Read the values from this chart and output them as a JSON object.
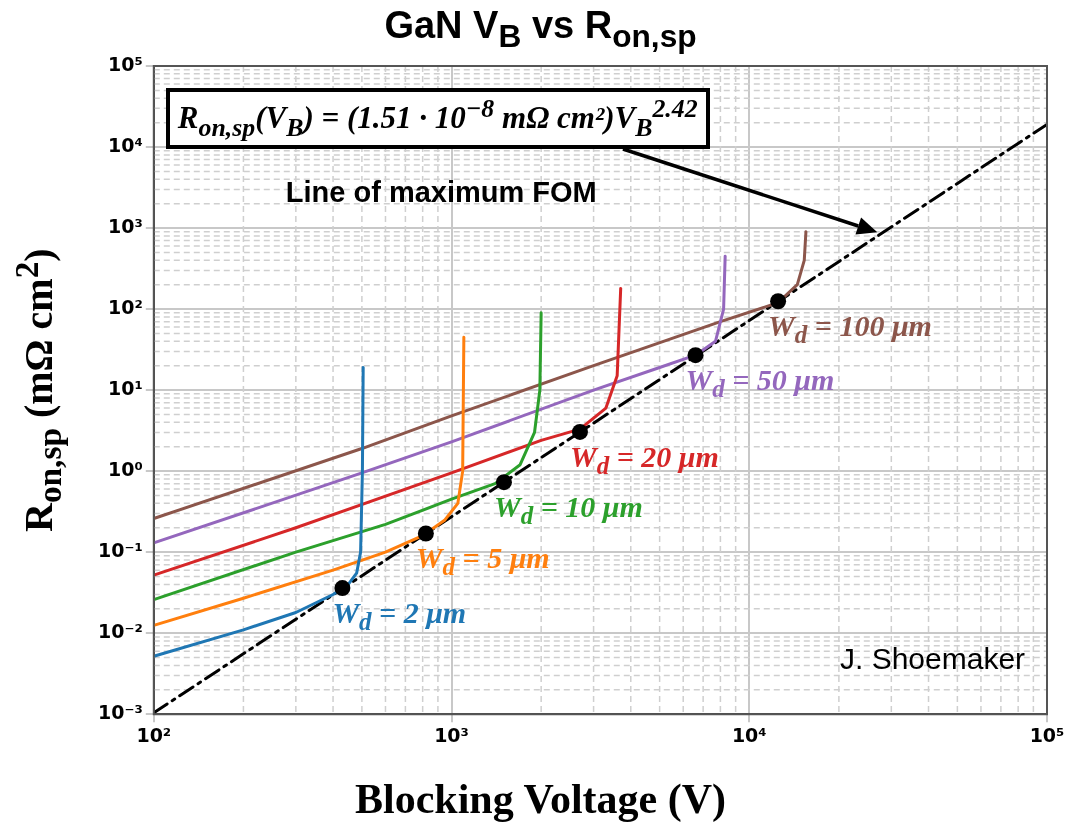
{
  "chart_data": {
    "type": "line",
    "title": "GaN V$_{B}$ vs R$_{on,sp}$",
    "xlabel": "Blocking Voltage (V)",
    "ylabel": "R$_{on,sp}$ (mΩ cm$^{2}$)",
    "log": "xy",
    "grid": true,
    "marker": "none",
    "xlim": [
      100,
      100000
    ],
    "ylim": [
      0.001,
      100000
    ],
    "xticks": [
      {
        "value": 100,
        "label": "10²"
      },
      {
        "value": 1000,
        "label": "10³"
      },
      {
        "value": 10000,
        "label": "10⁴"
      },
      {
        "value": 100000,
        "label": "10⁵"
      }
    ],
    "yticks": [
      {
        "value": 0.001,
        "label": "10⁻³"
      },
      {
        "value": 0.01,
        "label": "10⁻²"
      },
      {
        "value": 0.1,
        "label": "10⁻¹"
      },
      {
        "value": 1,
        "label": "10⁰"
      },
      {
        "value": 10,
        "label": "10¹"
      },
      {
        "value": 100,
        "label": "10²"
      },
      {
        "value": 1000,
        "label": "10³"
      },
      {
        "value": 10000,
        "label": "10⁴"
      },
      {
        "value": 100000,
        "label": "10⁵"
      }
    ],
    "series": [
      {
        "name": "W$_{d}$ = 2 μm",
        "color": "#1f77b4",
        "x": [
          100,
          200,
          300,
          400,
          450,
          480,
          495,
          502,
          505
        ],
        "values": [
          0.0052,
          0.011,
          0.018,
          0.03,
          0.04,
          0.055,
          0.1,
          1,
          19
        ]
      },
      {
        "name": "W$_{d}$ = 5 μm",
        "color": "#ff7f0e",
        "x": [
          100,
          200,
          400,
          600,
          800,
          950,
          1050,
          1090,
          1100
        ],
        "values": [
          0.0125,
          0.027,
          0.06,
          0.1,
          0.16,
          0.25,
          0.4,
          1,
          45
        ]
      },
      {
        "name": "W$_{d}$ = 10 μm",
        "color": "#2ca02c",
        "x": [
          100,
          300,
          600,
          1000,
          1400,
          1700,
          1900,
          1980,
          2000
        ],
        "values": [
          0.026,
          0.1,
          0.22,
          0.45,
          0.7,
          1.2,
          3,
          10,
          90
        ]
      },
      {
        "name": "W$_{d}$ = 20 μm",
        "color": "#d62728",
        "x": [
          100,
          300,
          1000,
          2000,
          2700,
          3300,
          3600,
          3700
        ],
        "values": [
          0.052,
          0.2,
          0.95,
          2.4,
          3.3,
          6,
          15,
          180
        ]
      },
      {
        "name": "W$_{d}$ = 50 μm",
        "color": "#9467bd",
        "x": [
          100,
          500,
          1000,
          3000,
          5000,
          6600,
          7700,
          8200,
          8300
        ],
        "values": [
          0.13,
          0.95,
          2.3,
          10,
          19,
          27,
          40,
          100,
          450
        ]
      },
      {
        "name": "W$_{d}$ = 100 μm",
        "color": "#8c564b",
        "x": [
          100,
          500,
          1000,
          3000,
          8000,
          12500,
          14500,
          15300,
          15500
        ],
        "values": [
          0.26,
          1.9,
          4.8,
          20,
          70,
          120,
          200,
          400,
          900
        ]
      },
      {
        "color": "#000000",
        "line_style": "dashed",
        "x": [
          100,
          100000
        ],
        "values": [
          0.00104,
          19000
        ]
      },
      {
        "type": "scatter",
        "marker": "circle",
        "color": "#000000",
        "x": [
          430,
          820,
          1500,
          2700,
          6600,
          12500
        ],
        "values": [
          0.036,
          0.17,
          0.73,
          3.05,
          27,
          125
        ]
      }
    ],
    "annotations": [
      "R$_{on,sp}$(V$_{B}$) = (1.51 · 10$^{−8}$ mΩ cm²)V$_{B}$$^{2.42}$",
      "Line of maximum FOM",
      "J. Shoemaker"
    ]
  }
}
